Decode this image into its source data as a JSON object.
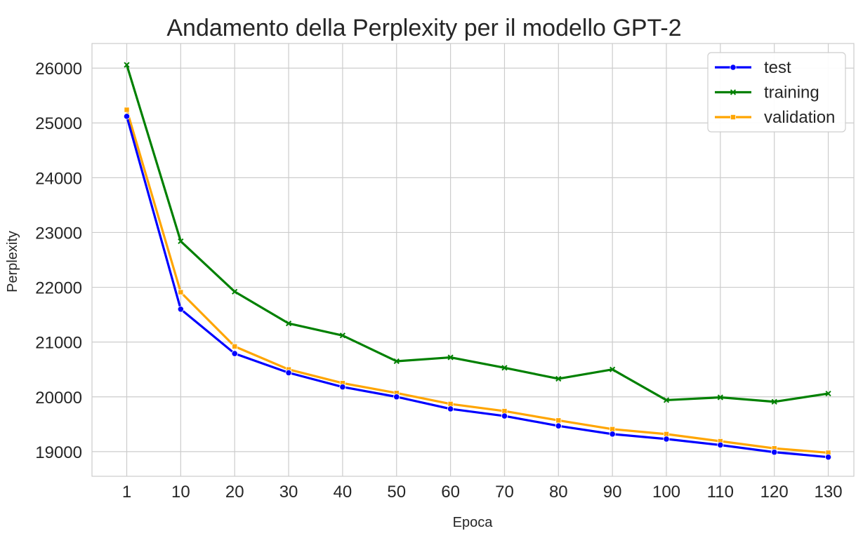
{
  "chart_data": {
    "type": "line",
    "title": "Andamento della Perplexity per il modello GPT-2",
    "xlabel": "Epoca",
    "ylabel": "Perplexity",
    "x": [
      1,
      10,
      20,
      30,
      40,
      50,
      60,
      70,
      80,
      90,
      100,
      110,
      120,
      130
    ],
    "x_tick_labels": [
      "1",
      "10",
      "20",
      "30",
      "40",
      "50",
      "60",
      "70",
      "80",
      "90",
      "100",
      "110",
      "120",
      "130"
    ],
    "y_ticks": [
      19000,
      20000,
      21000,
      22000,
      23000,
      24000,
      25000,
      26000
    ],
    "y_tick_labels": [
      "19000",
      "20000",
      "21000",
      "22000",
      "23000",
      "24000",
      "25000",
      "26000"
    ],
    "ylim": [
      18550,
      26450
    ],
    "grid": true,
    "legend_position": "top-right",
    "series": [
      {
        "name": "test",
        "color": "#0000ff",
        "marker": "circle",
        "values": [
          25120,
          21600,
          20790,
          20440,
          20180,
          20000,
          19780,
          19650,
          19470,
          19320,
          19230,
          19120,
          18990,
          18900
        ]
      },
      {
        "name": "training",
        "color": "#008000",
        "marker": "x",
        "values": [
          26060,
          22840,
          21920,
          21340,
          21120,
          20650,
          20720,
          20530,
          20330,
          20500,
          19940,
          19990,
          19910,
          20060
        ]
      },
      {
        "name": "validation",
        "color": "#ffa500",
        "marker": "square",
        "values": [
          25240,
          21910,
          20920,
          20500,
          20250,
          20070,
          19870,
          19740,
          19570,
          19410,
          19320,
          19190,
          19060,
          18980
        ]
      }
    ]
  }
}
